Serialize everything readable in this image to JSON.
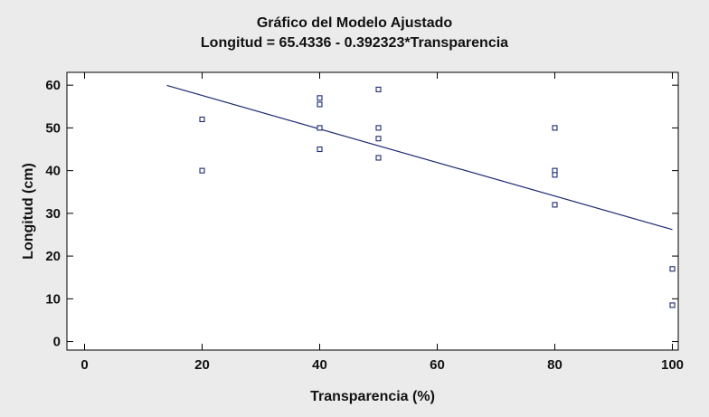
{
  "chart_data": {
    "type": "scatter",
    "title": "Gráfico del Modelo Ajustado",
    "subtitle": "Longitud = 65.4336 - 0.392323*Transparencia",
    "xlabel": "Transparencia (%)",
    "ylabel": "Longitud (cm)",
    "xlim": [
      -3,
      101
    ],
    "ylim": [
      -2,
      63
    ],
    "xticks": [
      0,
      20,
      40,
      60,
      80,
      100
    ],
    "yticks": [
      0,
      10,
      20,
      30,
      40,
      50,
      60
    ],
    "grid": false,
    "series": [
      {
        "values": [
          {
            "x": 20,
            "y": 52
          },
          {
            "x": 20,
            "y": 40
          },
          {
            "x": 40,
            "y": 57
          },
          {
            "x": 40,
            "y": 55.5
          },
          {
            "x": 40,
            "y": 50
          },
          {
            "x": 40,
            "y": 45
          },
          {
            "x": 50,
            "y": 59
          },
          {
            "x": 50,
            "y": 50
          },
          {
            "x": 50,
            "y": 47.5
          },
          {
            "x": 50,
            "y": 43
          },
          {
            "x": 80,
            "y": 50
          },
          {
            "x": 80,
            "y": 40
          },
          {
            "x": 80,
            "y": 39
          },
          {
            "x": 80,
            "y": 32
          },
          {
            "x": 100,
            "y": 17
          },
          {
            "x": 100,
            "y": 8.5
          }
        ]
      }
    ],
    "fit_line": {
      "intercept": 65.4336,
      "slope": -0.392323,
      "x_from": 14,
      "x_to": 100
    },
    "colors": {
      "marker": "#1c2a73",
      "line": "#1c2a73",
      "plot_bg": "#ffffff",
      "page_bg": "#ebebeb"
    }
  }
}
